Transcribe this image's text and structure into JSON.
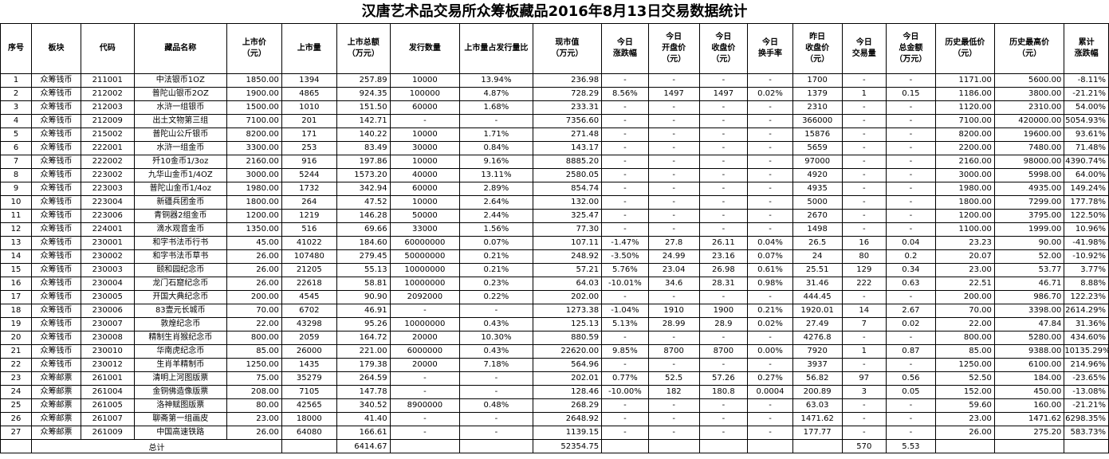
{
  "title": "汉唐艺术品交易所众筹板藏品2016年8月13日交易数据统计",
  "headers": [
    "序号",
    "板块",
    "代码",
    "藏品名称",
    "上市价\n（元）",
    "上市量",
    "上市总额\n（万元）",
    "发行数量",
    "上市量占发行量比",
    "现市值\n（万元）",
    "今日\n涨跌幅",
    "今日\n开盘价\n（元）",
    "今日\n收盘价\n（元）",
    "今日\n换手率",
    "昨日\n收盘价\n（元）",
    "今日\n交易量",
    "今日\n总金额\n（万元）",
    "历史最低价\n（元）",
    "历史最高价\n（元）",
    "累计\n涨跌幅"
  ],
  "rows": [
    [
      "1",
      "众筹钱币",
      "211001",
      "中法银币1OZ",
      "1850.00",
      "1394",
      "257.89",
      "10000",
      "13.94%",
      "236.98",
      "-",
      "-",
      "-",
      "-",
      "1700",
      "-",
      "-",
      "1171.00",
      "5600.00",
      "-8.11%"
    ],
    [
      "2",
      "众筹钱币",
      "212002",
      "普陀山银币2OZ",
      "1900.00",
      "4865",
      "924.35",
      "100000",
      "4.87%",
      "728.29",
      "8.56%",
      "1497",
      "1497",
      "0.02%",
      "1379",
      "1",
      "0.15",
      "1186.00",
      "3800.00",
      "-21.21%"
    ],
    [
      "3",
      "众筹钱币",
      "212003",
      "水浒一组银币",
      "1500.00",
      "1010",
      "151.50",
      "60000",
      "1.68%",
      "233.31",
      "-",
      "-",
      "-",
      "-",
      "2310",
      "-",
      "-",
      "1120.00",
      "2310.00",
      "54.00%"
    ],
    [
      "4",
      "众筹钱币",
      "212009",
      "出土文物第三组",
      "7100.00",
      "201",
      "142.71",
      "-",
      "-",
      "7356.60",
      "-",
      "-",
      "-",
      "-",
      "366000",
      "-",
      "-",
      "7100.00",
      "420000.00",
      "5054.93%"
    ],
    [
      "5",
      "众筹钱币",
      "215002",
      "普陀山公斤银币",
      "8200.00",
      "171",
      "140.22",
      "10000",
      "1.71%",
      "271.48",
      "-",
      "-",
      "-",
      "-",
      "15876",
      "-",
      "-",
      "8200.00",
      "19600.00",
      "93.61%"
    ],
    [
      "6",
      "众筹钱币",
      "222001",
      "水浒一组金币",
      "3300.00",
      "253",
      "83.49",
      "30000",
      "0.84%",
      "143.17",
      "-",
      "-",
      "-",
      "-",
      "5659",
      "-",
      "-",
      "2200.00",
      "7480.00",
      "71.48%"
    ],
    [
      "7",
      "众筹钱币",
      "222002",
      "歼10金币1/3oz",
      "2160.00",
      "916",
      "197.86",
      "10000",
      "9.16%",
      "8885.20",
      "-",
      "-",
      "-",
      "-",
      "97000",
      "-",
      "-",
      "2160.00",
      "98000.00",
      "4390.74%"
    ],
    [
      "8",
      "众筹钱币",
      "223002",
      "九华山金币1/4OZ",
      "3000.00",
      "5244",
      "1573.20",
      "40000",
      "13.11%",
      "2580.05",
      "-",
      "-",
      "-",
      "-",
      "4920",
      "-",
      "-",
      "3000.00",
      "5998.00",
      "64.00%"
    ],
    [
      "9",
      "众筹钱币",
      "223003",
      "普陀山金币1/4oz",
      "1980.00",
      "1732",
      "342.94",
      "60000",
      "2.89%",
      "854.74",
      "-",
      "-",
      "-",
      "-",
      "4935",
      "-",
      "-",
      "1980.00",
      "4935.00",
      "149.24%"
    ],
    [
      "10",
      "众筹钱币",
      "223004",
      "新疆兵团金币",
      "1800.00",
      "264",
      "47.52",
      "10000",
      "2.64%",
      "132.00",
      "-",
      "-",
      "-",
      "-",
      "5000",
      "-",
      "-",
      "1800.00",
      "7299.00",
      "177.78%"
    ],
    [
      "11",
      "众筹钱币",
      "223006",
      "青铜器2组金币",
      "1200.00",
      "1219",
      "146.28",
      "50000",
      "2.44%",
      "325.47",
      "-",
      "-",
      "-",
      "-",
      "2670",
      "-",
      "-",
      "1200.00",
      "3795.00",
      "122.50%"
    ],
    [
      "12",
      "众筹钱币",
      "224001",
      "滴水观音金币",
      "1350.00",
      "516",
      "69.66",
      "33000",
      "1.56%",
      "77.30",
      "-",
      "-",
      "-",
      "-",
      "1498",
      "-",
      "-",
      "1100.00",
      "1999.00",
      "10.96%"
    ],
    [
      "13",
      "众筹钱币",
      "230001",
      "和字书法币行书",
      "45.00",
      "41022",
      "184.60",
      "60000000",
      "0.07%",
      "107.11",
      "-1.47%",
      "27.8",
      "26.11",
      "0.04%",
      "26.5",
      "16",
      "0.04",
      "23.23",
      "90.00",
      "-41.98%"
    ],
    [
      "14",
      "众筹钱币",
      "230002",
      "和字书法币草书",
      "26.00",
      "107480",
      "279.45",
      "50000000",
      "0.21%",
      "248.92",
      "-3.50%",
      "24.99",
      "23.16",
      "0.07%",
      "24",
      "80",
      "0.2",
      "20.07",
      "52.00",
      "-10.92%"
    ],
    [
      "15",
      "众筹钱币",
      "230003",
      "颐和园纪念币",
      "26.00",
      "21205",
      "55.13",
      "10000000",
      "0.21%",
      "57.21",
      "5.76%",
      "23.04",
      "26.98",
      "0.61%",
      "25.51",
      "129",
      "0.34",
      "23.00",
      "53.77",
      "3.77%"
    ],
    [
      "16",
      "众筹钱币",
      "230004",
      "龙门石窟纪念币",
      "26.00",
      "22618",
      "58.81",
      "10000000",
      "0.23%",
      "64.03",
      "-10.01%",
      "34.6",
      "28.31",
      "0.98%",
      "31.46",
      "222",
      "0.63",
      "22.51",
      "46.71",
      "8.88%"
    ],
    [
      "17",
      "众筹钱币",
      "230005",
      "开国大典纪念币",
      "200.00",
      "4545",
      "90.90",
      "2092000",
      "0.22%",
      "202.00",
      "-",
      "-",
      "-",
      "-",
      "444.45",
      "-",
      "-",
      "200.00",
      "986.70",
      "122.23%"
    ],
    [
      "18",
      "众筹钱币",
      "230006",
      "83壹元长城币",
      "70.00",
      "6702",
      "46.91",
      "-",
      "-",
      "1273.38",
      "-1.04%",
      "1910",
      "1900",
      "0.21%",
      "1920.01",
      "14",
      "2.67",
      "70.00",
      "3398.00",
      "2614.29%"
    ],
    [
      "19",
      "众筹钱币",
      "230007",
      "敦煌纪念币",
      "22.00",
      "43298",
      "95.26",
      "10000000",
      "0.43%",
      "125.13",
      "5.13%",
      "28.99",
      "28.9",
      "0.02%",
      "27.49",
      "7",
      "0.02",
      "22.00",
      "47.84",
      "31.36%"
    ],
    [
      "20",
      "众筹钱币",
      "230008",
      "精制生肖猴纪念币",
      "800.00",
      "2059",
      "164.72",
      "20000",
      "10.30%",
      "880.59",
      "-",
      "-",
      "-",
      "-",
      "4276.8",
      "-",
      "-",
      "800.00",
      "5280.00",
      "434.60%"
    ],
    [
      "21",
      "众筹钱币",
      "230010",
      "华南虎纪念币",
      "85.00",
      "26000",
      "221.00",
      "6000000",
      "0.43%",
      "22620.00",
      "9.85%",
      "8700",
      "8700",
      "0.00%",
      "7920",
      "1",
      "0.87",
      "85.00",
      "9388.00",
      "10135.29%"
    ],
    [
      "22",
      "众筹钱币",
      "230012",
      "生肖羊精制币",
      "1250.00",
      "1435",
      "179.38",
      "20000",
      "7.18%",
      "564.96",
      "-",
      "-",
      "-",
      "-",
      "3937",
      "-",
      "-",
      "1250.00",
      "6100.00",
      "214.96%"
    ],
    [
      "23",
      "众筹邮票",
      "261001",
      "清明上河图版票",
      "75.00",
      "35279",
      "264.59",
      "-",
      "-",
      "202.01",
      "0.77%",
      "52.5",
      "57.26",
      "0.27%",
      "56.82",
      "97",
      "0.56",
      "52.50",
      "184.00",
      "-23.65%"
    ],
    [
      "24",
      "众筹邮票",
      "261004",
      "金铜佛造像版票",
      "208.00",
      "7105",
      "147.78",
      "-",
      "-",
      "128.46",
      "-10.00%",
      "182",
      "180.8",
      "0.0004",
      "200.89",
      "3",
      "0.05",
      "152.00",
      "450.00",
      "-13.08%"
    ],
    [
      "25",
      "众筹邮票",
      "261005",
      "洛神赋图版票",
      "80.00",
      "42565",
      "340.52",
      "8900000",
      "0.48%",
      "268.29",
      "-",
      "-",
      "-",
      "-",
      "63.03",
      "-",
      "-",
      "59.60",
      "160.00",
      "-21.21%"
    ],
    [
      "26",
      "众筹邮票",
      "261007",
      "聊斋第一组画皮",
      "23.00",
      "18000",
      "41.40",
      "-",
      "-",
      "2648.92",
      "-",
      "-",
      "-",
      "-",
      "1471.62",
      "-",
      "-",
      "23.00",
      "1471.62",
      "6298.35%"
    ],
    [
      "27",
      "众筹邮票",
      "261009",
      "中国高速铁路",
      "26.00",
      "64080",
      "166.61",
      "-",
      "-",
      "1139.15",
      "-",
      "-",
      "-",
      "-",
      "177.77",
      "-",
      "-",
      "26.00",
      "275.20",
      "583.73%"
    ]
  ],
  "total": {
    "label": "总计",
    "listing_total": "6414.67",
    "market_value": "52354.75",
    "volume": "570",
    "amount": "5.53"
  }
}
